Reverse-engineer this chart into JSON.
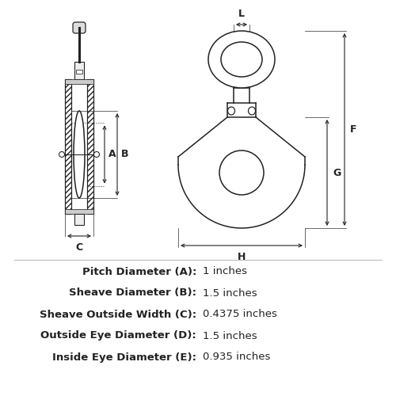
{
  "bg_color": "#ffffff",
  "line_color": "#222222",
  "specs": [
    {
      "label": "Pitch Diameter (A):",
      "value": "1 inches"
    },
    {
      "label": "Sheave Diameter (B):",
      "value": "1.5 inches"
    },
    {
      "label": "Sheave Outside Width (C):",
      "value": "0.4375 inches"
    },
    {
      "label": "Outside Eye Diameter (D):",
      "value": "1.5 inches"
    },
    {
      "label": "Inside Eye Diameter (E):",
      "value": "0.935 inches"
    }
  ],
  "lw": 1.1,
  "dlw": 0.8,
  "spec_fontsize": 9.5,
  "label_fontsize": 9
}
